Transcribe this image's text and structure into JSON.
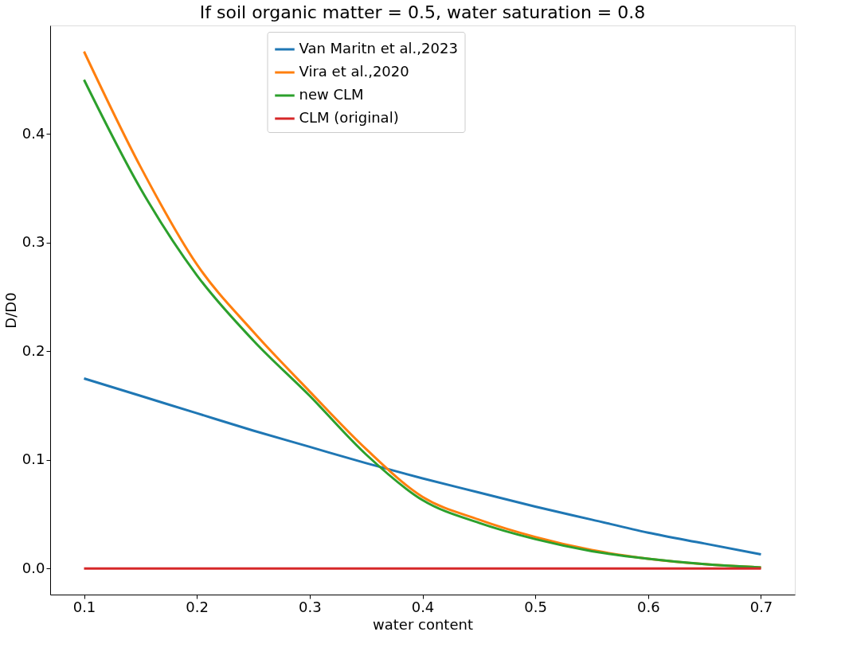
{
  "chart_data": {
    "type": "line",
    "title": "If soil organic matter = 0.5, water saturation = 0.8",
    "xlabel": "water content",
    "ylabel": "D/D0",
    "x": [
      0.1,
      0.15,
      0.2,
      0.25,
      0.3,
      0.35,
      0.4,
      0.45,
      0.5,
      0.55,
      0.6,
      0.65,
      0.7
    ],
    "series": [
      {
        "name": "Van Maritn et al.,2023",
        "color": "#1f77b4",
        "values": [
          0.175,
          0.159,
          0.143,
          0.127,
          0.112,
          0.097,
          0.083,
          0.07,
          0.057,
          0.045,
          0.033,
          0.023,
          0.013
        ]
      },
      {
        "name": "Vira et al.,2020",
        "color": "#ff7f0e",
        "values": [
          0.476,
          0.37,
          0.28,
          0.218,
          0.163,
          0.11,
          0.066,
          0.045,
          0.029,
          0.017,
          0.009,
          0.004,
          0.001
        ]
      },
      {
        "name": "new CLM",
        "color": "#2ca02c",
        "values": [
          0.45,
          0.35,
          0.27,
          0.21,
          0.159,
          0.105,
          0.063,
          0.042,
          0.027,
          0.016,
          0.009,
          0.004,
          0.001
        ]
      },
      {
        "name": "CLM (original)",
        "color": "#d62728",
        "values": [
          0,
          0,
          0,
          0,
          0,
          0,
          0,
          0,
          0,
          0,
          0,
          0,
          0
        ]
      }
    ],
    "xlim": [
      0.07,
      0.73
    ],
    "ylim": [
      -0.024,
      0.5
    ],
    "xticks": [
      0.1,
      0.2,
      0.3,
      0.4,
      0.5,
      0.6,
      0.7
    ],
    "yticks": [
      {
        "value": 0,
        "label": "0.0"
      },
      0.1,
      0.2,
      0.3,
      0.4
    ],
    "grid": false,
    "legend": "top",
    "line_style": "solid",
    "marker": "none"
  }
}
